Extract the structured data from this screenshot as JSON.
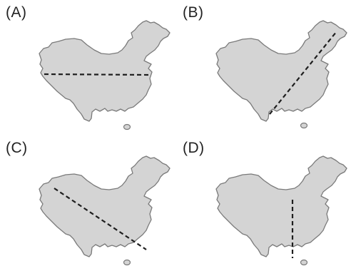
{
  "panels": [
    {
      "id": "A",
      "label": "(A)",
      "divider": "horizontal"
    },
    {
      "id": "B",
      "label": "(B)",
      "divider": "diagonal-northeast-southwest"
    },
    {
      "id": "C",
      "label": "(C)",
      "divider": "diagonal-northwest-southeast"
    },
    {
      "id": "D",
      "label": "(D)",
      "divider": "vertical"
    }
  ],
  "colors": {
    "land_fill": "#d4d4d4",
    "land_outline": "#7a7a7a",
    "divider_line": "#1e1e1e"
  }
}
